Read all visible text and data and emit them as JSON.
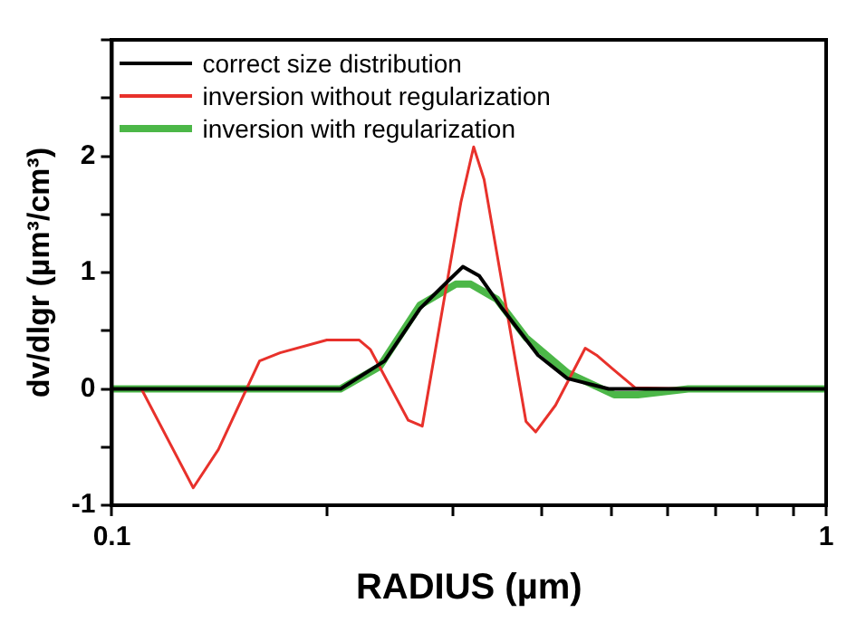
{
  "chart_data": {
    "type": "line",
    "xlabel": "RADIUS (µm)",
    "ylabel": "dv/dlgr (µm³/cm³)",
    "log": "x",
    "xlim": [
      0.1,
      1
    ],
    "ylim": [
      -1,
      3
    ],
    "xticks": [
      0.1,
      {
        "value": 0.2,
        "label": null
      },
      {
        "value": 0.3,
        "label": null
      },
      {
        "value": 0.4,
        "label": null
      },
      {
        "value": 0.5,
        "label": null
      },
      {
        "value": 0.6,
        "label": null
      },
      {
        "value": 0.7,
        "label": null
      },
      {
        "value": 0.8,
        "label": null
      },
      {
        "value": 0.9,
        "label": null
      },
      1
    ],
    "yticks": [
      -1,
      {
        "value": -0.5,
        "label": null
      },
      0,
      {
        "value": 0.5,
        "label": null
      },
      1,
      {
        "value": 1.5,
        "label": null
      },
      2,
      {
        "value": 2.5,
        "label": null
      },
      {
        "value": 3,
        "label": null
      }
    ],
    "grid": false,
    "legend": "top left",
    "marker": "none",
    "line_style": "solid",
    "series": [
      {
        "name": "correct size distribution",
        "color": "#000000",
        "x": [
          0.1,
          0.209,
          0.241,
          0.27,
          0.297,
          0.31,
          0.327,
          0.352,
          0.395,
          0.434,
          0.496,
          0.641,
          1
        ],
        "values": [
          0,
          0,
          0.24,
          0.69,
          0.94,
          1.05,
          0.97,
          0.69,
          0.29,
          0.09,
          0,
          0,
          0
        ]
      },
      {
        "name": "inversion without regularization",
        "color": "#e8312b",
        "x": [
          0.1,
          0.11,
          0.13,
          0.141,
          0.161,
          0.172,
          0.2,
          0.222,
          0.23,
          0.26,
          0.272,
          0.308,
          0.321,
          0.332,
          0.38,
          0.392,
          0.418,
          0.46,
          0.477,
          0.505,
          0.54,
          0.641,
          1
        ],
        "values": [
          0,
          0,
          -0.85,
          -0.52,
          0.24,
          0.31,
          0.42,
          0.42,
          0.34,
          -0.27,
          -0.32,
          1.6,
          2.08,
          1.8,
          -0.28,
          -0.37,
          -0.14,
          0.35,
          0.29,
          0.16,
          0.01,
          0,
          0
        ]
      },
      {
        "name": "inversion with regularization",
        "color": "#4cb748",
        "x": [
          0.1,
          0.209,
          0.237,
          0.27,
          0.303,
          0.318,
          0.346,
          0.38,
          0.434,
          0.505,
          0.545,
          0.641,
          1
        ],
        "values": [
          0,
          0,
          0.19,
          0.72,
          0.9,
          0.9,
          0.77,
          0.44,
          0.14,
          -0.05,
          -0.05,
          0,
          0
        ]
      }
    ]
  }
}
